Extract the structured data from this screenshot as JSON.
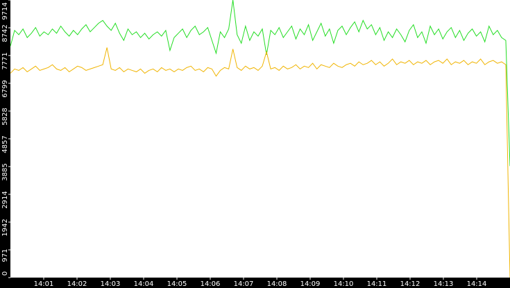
{
  "chart_data": {
    "type": "line",
    "xlim": [
      "14:00",
      "14:15"
    ],
    "xticks": [
      "14:01",
      "14:02",
      "14:03",
      "14:04",
      "14:05",
      "14:06",
      "14:07",
      "14:08",
      "14:09",
      "14:10",
      "14:11",
      "14:12",
      "14:13",
      "14:14"
    ],
    "ylim": [
      0,
      9714
    ],
    "yticks": [
      0,
      971,
      1942,
      2914,
      3885,
      4857,
      5828,
      6799,
      7771,
      8742,
      9714
    ],
    "series": [
      {
        "color": "#22dd22",
        "values": [
          8100,
          8650,
          8500,
          8700,
          8400,
          8550,
          8750,
          8450,
          8600,
          8500,
          8700,
          8550,
          8800,
          8600,
          8450,
          8650,
          8500,
          8700,
          8850,
          8600,
          8750,
          8900,
          9000,
          8800,
          8650,
          8900,
          8550,
          8300,
          8700,
          8500,
          8600,
          8400,
          8550,
          8350,
          8500,
          8600,
          8450,
          8650,
          7950,
          8400,
          8550,
          8700,
          8400,
          8650,
          8800,
          8500,
          8600,
          8750,
          8300,
          7850,
          8600,
          8400,
          8700,
          9714,
          8500,
          8200,
          8800,
          8300,
          8600,
          8450,
          8700,
          7800,
          8650,
          8500,
          8750,
          8400,
          8600,
          8800,
          8350,
          8700,
          8500,
          8850,
          8300,
          8600,
          8900,
          8450,
          8700,
          8200,
          8650,
          8800,
          8500,
          8750,
          8950,
          8600,
          9000,
          8700,
          8850,
          8500,
          8750,
          8300,
          8600,
          8400,
          8700,
          8500,
          8250,
          8650,
          8850,
          8400,
          8600,
          8200,
          8800,
          8500,
          8700,
          8350,
          8600,
          8750,
          8400,
          8650,
          8300,
          8550,
          8700,
          8450,
          8600,
          8250,
          8800,
          8500,
          8650,
          8400,
          8300,
          3900
        ]
      },
      {
        "color": "#f0b400",
        "values": [
          7150,
          7300,
          7250,
          7350,
          7200,
          7300,
          7400,
          7250,
          7300,
          7350,
          7450,
          7300,
          7250,
          7350,
          7200,
          7300,
          7400,
          7350,
          7250,
          7300,
          7350,
          7400,
          7450,
          8050,
          7300,
          7250,
          7350,
          7200,
          7300,
          7250,
          7200,
          7300,
          7150,
          7250,
          7300,
          7200,
          7350,
          7250,
          7300,
          7200,
          7300,
          7250,
          7350,
          7400,
          7250,
          7300,
          7200,
          7350,
          7300,
          7050,
          7250,
          7350,
          7300,
          8000,
          7350,
          7250,
          7400,
          7300,
          7350,
          7250,
          7400,
          7900,
          7300,
          7350,
          7250,
          7400,
          7300,
          7350,
          7450,
          7300,
          7400,
          7350,
          7500,
          7300,
          7450,
          7400,
          7350,
          7500,
          7400,
          7350,
          7450,
          7500,
          7400,
          7550,
          7450,
          7500,
          7600,
          7450,
          7550,
          7400,
          7500,
          7650,
          7450,
          7550,
          7500,
          7600,
          7450,
          7550,
          7500,
          7600,
          7450,
          7550,
          7600,
          7500,
          7650,
          7450,
          7550,
          7500,
          7600,
          7450,
          7550,
          7500,
          7650,
          7450,
          7550,
          7600,
          7500,
          7550,
          7450,
          0
        ]
      }
    ]
  }
}
